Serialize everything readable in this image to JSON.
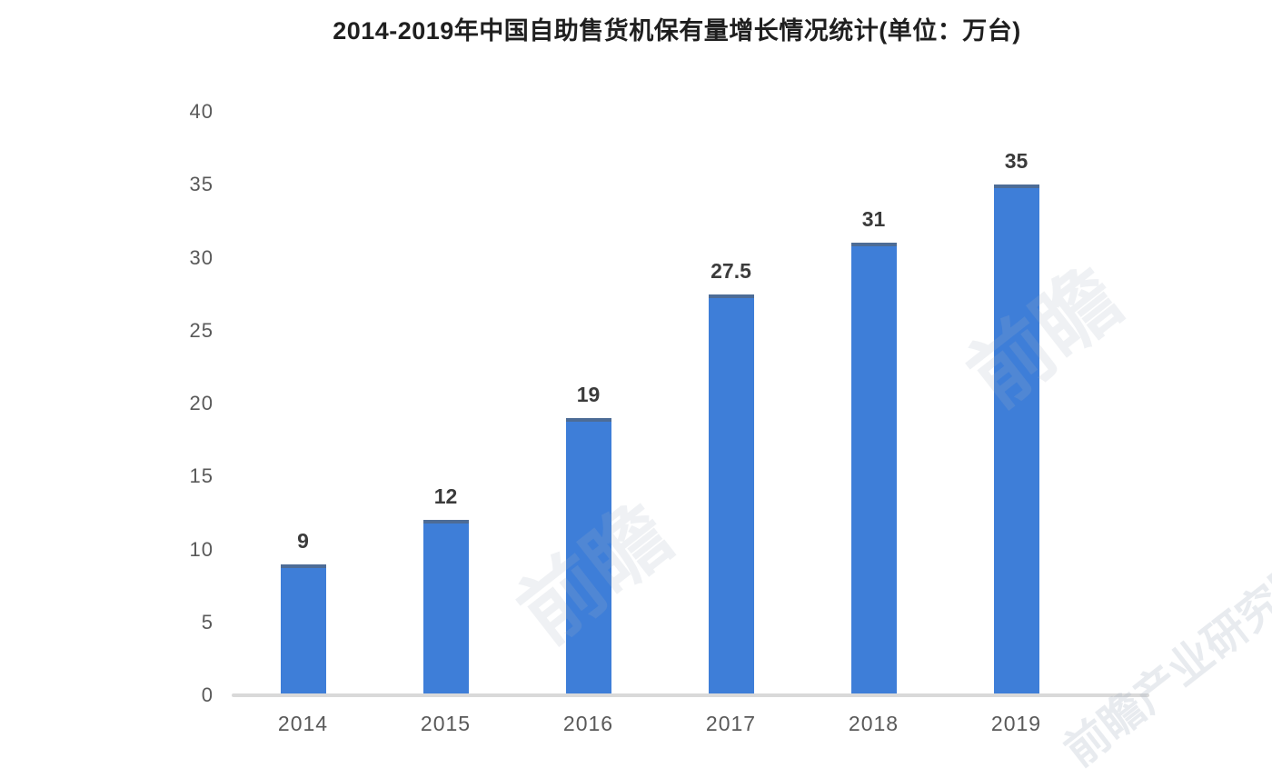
{
  "chart_data": {
    "type": "bar",
    "title": "2014-2019年中国自助售货机保有量增长情况统计(单位：万台)",
    "categories": [
      "2014",
      "2015",
      "2016",
      "2017",
      "2018",
      "2019"
    ],
    "values": [
      9,
      12,
      19,
      27.5,
      31,
      35
    ],
    "value_labels": [
      "9",
      "12",
      "19",
      "27.5",
      "31",
      "35"
    ],
    "ylabel": "",
    "xlabel": "",
    "ylim": [
      0,
      40
    ],
    "yticks": [
      0,
      5,
      10,
      15,
      20,
      25,
      30,
      35,
      40
    ],
    "grid": false,
    "legend_position": "none",
    "bar_color": "#3e7ed8",
    "bar_top_edge_color": "#58606a",
    "axis_line_color": "#d9d9d9",
    "value_label_color": "#3b3b3b",
    "tick_label_color": "#595959",
    "title_color": "#1f1f1f",
    "background_color": "#ffffff"
  },
  "watermark": {
    "text": "前瞻",
    "corner_text": "前瞻产业研究院"
  }
}
